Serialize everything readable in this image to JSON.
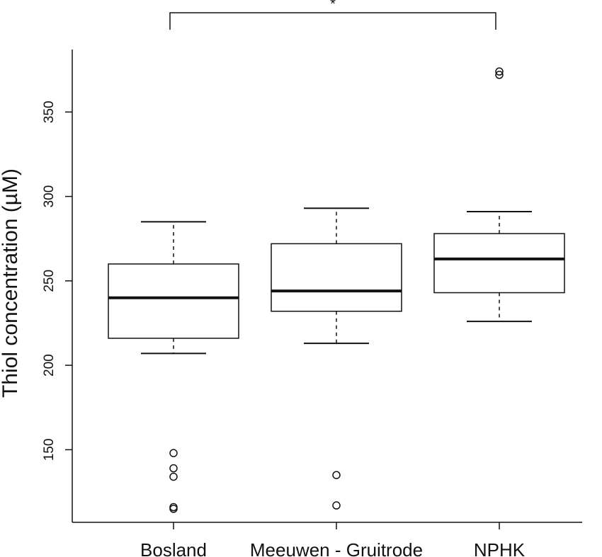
{
  "chart_data": {
    "type": "boxplot",
    "title": "",
    "xlabel": "",
    "ylabel": "Thiol concentration (µM)",
    "ylim": [
      107,
      387
    ],
    "yticks": [
      150,
      200,
      250,
      300,
      350
    ],
    "grid": false,
    "categories": [
      "Bosland",
      "Meeuwen - Gruitrode",
      "NPHK"
    ],
    "boxes": [
      {
        "category": "Bosland",
        "whisker_low": 207,
        "q1": 216,
        "median": 240,
        "q3": 260,
        "whisker_high": 285,
        "outliers": [
          148,
          139,
          134,
          116,
          115
        ]
      },
      {
        "category": "Meeuwen - Gruitrode",
        "whisker_low": 213,
        "q1": 232,
        "median": 244,
        "q3": 272,
        "whisker_high": 293,
        "outliers": [
          135,
          117
        ]
      },
      {
        "category": "NPHK",
        "whisker_low": 226,
        "q1": 243,
        "median": 263,
        "q3": 278,
        "whisker_high": 291,
        "outliers": [
          374,
          372
        ]
      }
    ],
    "significance": {
      "from": "Bosland",
      "to": "NPHK",
      "label": "*"
    }
  }
}
